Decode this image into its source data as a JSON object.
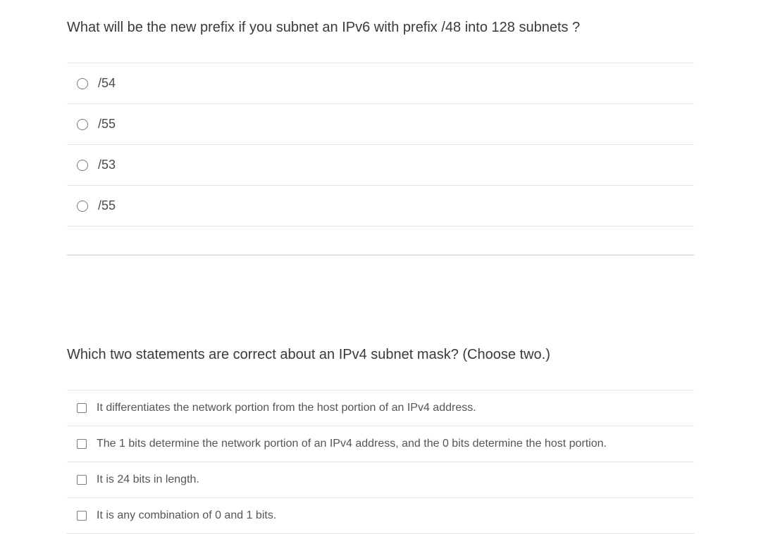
{
  "question1": {
    "prompt": "What will be the new prefix if you subnet an IPv6 with prefix /48 into 128 subnets ?",
    "type": "radio",
    "options": [
      {
        "label": "/54"
      },
      {
        "label": "/55"
      },
      {
        "label": "/53"
      },
      {
        "label": "/55"
      }
    ]
  },
  "question2": {
    "prompt": "Which two statements are correct about an IPv4 subnet mask? (Choose two.)",
    "type": "checkbox",
    "options": [
      {
        "label": "It differentiates the network portion from the host portion of an IPv4 address."
      },
      {
        "label": "The 1 bits determine the network portion of an IPv4 address, and the 0 bits determine the host portion."
      },
      {
        "label": "It is 24 bits in length."
      },
      {
        "label": "It is any combination of 0 and 1 bits."
      }
    ]
  },
  "styles": {
    "background_color": "#ffffff",
    "text_color": "#3a3a3c",
    "option_text_color": "#4a4a4c",
    "border_color": "#e5e5e5",
    "divider_color": "#c9c9c9",
    "control_border_color": "#7a7a7a",
    "question_fontsize": 20,
    "option_fontsize_radio": 18,
    "option_fontsize_checkbox": 16
  }
}
